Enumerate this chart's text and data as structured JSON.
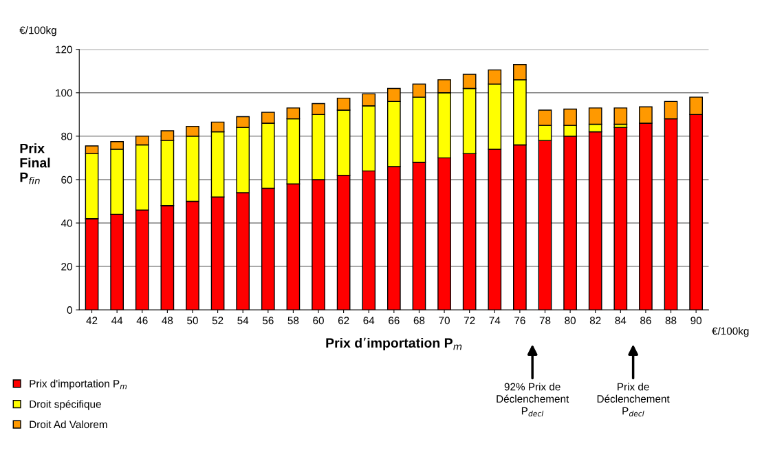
{
  "chart_data": {
    "type": "bar",
    "stacked": true,
    "ylabel": "Prix\nFinal\nP$_{fin}$",
    "xlabel": "Prix d’importation P$_{m}$",
    "x": [
      42,
      44,
      46,
      48,
      50,
      52,
      54,
      56,
      58,
      60,
      62,
      64,
      66,
      68,
      70,
      72,
      74,
      76,
      78,
      80,
      82,
      84,
      86,
      88,
      90
    ],
    "series": [
      {
        "name": "Prix d'importation P$_{m}$",
        "color": "#ff0000",
        "values": [
          42,
          44,
          46,
          48,
          50,
          52,
          54,
          56,
          58,
          60,
          62,
          64,
          66,
          68,
          70,
          72,
          74,
          76,
          78,
          80,
          82,
          84,
          86,
          88,
          90
        ]
      },
      {
        "name": "Droit spécifique",
        "color": "#ffff00",
        "values": [
          30,
          30,
          30,
          30,
          30,
          30,
          30,
          30,
          30,
          30,
          30,
          30,
          30,
          30,
          30,
          30,
          30,
          30,
          7,
          5,
          3.5,
          1.5,
          null,
          null,
          null
        ]
      },
      {
        "name": "Droit Ad Valorem",
        "color": "#ff9900",
        "values": [
          3.5,
          3.5,
          4,
          4.5,
          4.5,
          4.5,
          5,
          5,
          5,
          5,
          5.5,
          5.5,
          6,
          6,
          6,
          6.5,
          6.5,
          7,
          7,
          7.5,
          7.5,
          7.5,
          7.5,
          8,
          8
        ]
      }
    ],
    "xlim": [
      41,
      91
    ],
    "xticks": [
      42,
      44,
      46,
      48,
      50,
      52,
      54,
      56,
      58,
      60,
      62,
      64,
      66,
      68,
      70,
      72,
      74,
      76,
      78,
      80,
      82,
      84,
      86,
      88,
      90
    ],
    "ylim": [
      0,
      120
    ],
    "yticks": [
      0,
      20,
      40,
      60,
      80,
      100,
      120
    ],
    "grid": "y",
    "legend": "bottom left",
    "annotations": [
      "€/100kg",
      "€/100kg",
      "92% Prix de\nDéclenchement\nP$_{decl}$",
      "Prix de\nDéclenchement\nP$_{decl}$"
    ]
  }
}
